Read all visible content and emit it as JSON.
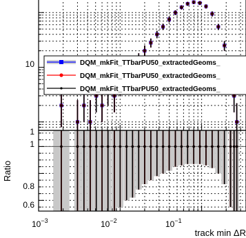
{
  "chart_data": [
    {
      "type": "scatter",
      "panel": "main",
      "xscale": "log",
      "yscale": "log",
      "xlim": [
        0.001,
        0.35
      ],
      "ylim": [
        0.7,
        180
      ],
      "grid": true,
      "ytick_labels": [
        "1",
        "10"
      ],
      "legend": {
        "placement": "top-right"
      },
      "series": [
        {
          "name": "DQM_mkFit_TTbarPU50_extractedGeoms_",
          "color": "#0000ff",
          "marker": "square",
          "points": [
            {
              "x": 0.0019,
              "y": 2,
              "err_lo": 1.2,
              "err_hi": 2.5
            },
            {
              "x": 0.003,
              "y": 1,
              "err_lo": 0.5,
              "err_hi": 1.5
            },
            {
              "x": 0.0036,
              "y": 2,
              "err_lo": 1.0,
              "err_hi": 2.0
            },
            {
              "x": 0.0043,
              "y": 1,
              "err_lo": 0.5,
              "err_hi": 1.5
            },
            {
              "x": 0.0051,
              "y": 3,
              "err_lo": 1.5,
              "err_hi": 2.5
            },
            {
              "x": 0.006,
              "y": 2,
              "err_lo": 1.0,
              "err_hi": 2.0
            },
            {
              "x": 0.0071,
              "y": 4,
              "err_lo": 2.0,
              "err_hi": 2.5
            },
            {
              "x": 0.0085,
              "y": 3,
              "err_lo": 1.5,
              "err_hi": 2.0
            },
            {
              "x": 0.01,
              "y": 5,
              "err_lo": 2.0,
              "err_hi": 2.5
            },
            {
              "x": 0.012,
              "y": 7,
              "err_lo": 2.5,
              "err_hi": 3.0
            },
            {
              "x": 0.0142,
              "y": 10,
              "err_lo": 3.0,
              "err_hi": 3.5
            },
            {
              "x": 0.0169,
              "y": 14,
              "err_lo": 3.5,
              "err_hi": 4.0
            },
            {
              "x": 0.02,
              "y": 20,
              "err_lo": 4.5,
              "err_hi": 5.0
            },
            {
              "x": 0.0238,
              "y": 28,
              "err_lo": 5.0,
              "err_hi": 5.5
            },
            {
              "x": 0.0283,
              "y": 40,
              "err_lo": 6.0,
              "err_hi": 6.5
            },
            {
              "x": 0.0336,
              "y": 55,
              "err_lo": 7.0,
              "err_hi": 7.5
            },
            {
              "x": 0.04,
              "y": 75,
              "err_lo": 8.5,
              "err_hi": 9.0
            },
            {
              "x": 0.0476,
              "y": 100,
              "err_lo": 10,
              "err_hi": 10
            },
            {
              "x": 0.0566,
              "y": 125,
              "err_lo": 11,
              "err_hi": 11
            },
            {
              "x": 0.0673,
              "y": 145,
              "err_lo": 12,
              "err_hi": 12
            },
            {
              "x": 0.08,
              "y": 155,
              "err_lo": 12,
              "err_hi": 12
            },
            {
              "x": 0.0951,
              "y": 150,
              "err_lo": 12,
              "err_hi": 12
            },
            {
              "x": 0.1131,
              "y": 130,
              "err_lo": 11,
              "err_hi": 11
            },
            {
              "x": 0.1345,
              "y": 95,
              "err_lo": 10,
              "err_hi": 10
            },
            {
              "x": 0.16,
              "y": 55,
              "err_lo": 7,
              "err_hi": 7
            },
            {
              "x": 0.1903,
              "y": 25,
              "err_lo": 5,
              "err_hi": 5
            },
            {
              "x": 0.2263,
              "y": 8,
              "err_lo": 3,
              "err_hi": 3
            },
            {
              "x": 0.25,
              "y": 3,
              "err_lo": 1.5,
              "err_hi": 2
            },
            {
              "x": 0.27,
              "y": 1,
              "err_lo": 0.5,
              "err_hi": 1.2
            }
          ]
        },
        {
          "name": "DQM_mkFit_TTbarPU50_extractedGeoms_",
          "color": "#ff0000",
          "marker": "circle",
          "points": [
            {
              "x": 0.0019,
              "y": 2,
              "err_lo": 1.2,
              "err_hi": 2.5
            },
            {
              "x": 0.003,
              "y": 1,
              "err_lo": 0.5,
              "err_hi": 1.5
            },
            {
              "x": 0.0036,
              "y": 2,
              "err_lo": 1.0,
              "err_hi": 2.0
            },
            {
              "x": 0.0043,
              "y": 1,
              "err_lo": 0.5,
              "err_hi": 1.5
            },
            {
              "x": 0.0051,
              "y": 3,
              "err_lo": 1.5,
              "err_hi": 2.5
            },
            {
              "x": 0.006,
              "y": 2,
              "err_lo": 1.0,
              "err_hi": 2.0
            },
            {
              "x": 0.0071,
              "y": 4,
              "err_lo": 2.0,
              "err_hi": 2.5
            },
            {
              "x": 0.0085,
              "y": 3,
              "err_lo": 1.5,
              "err_hi": 2.0
            },
            {
              "x": 0.01,
              "y": 5,
              "err_lo": 2.0,
              "err_hi": 2.5
            },
            {
              "x": 0.012,
              "y": 7,
              "err_lo": 2.5,
              "err_hi": 3.0
            },
            {
              "x": 0.0142,
              "y": 10,
              "err_lo": 3.0,
              "err_hi": 3.5
            },
            {
              "x": 0.0169,
              "y": 14,
              "err_lo": 3.5,
              "err_hi": 4.0
            },
            {
              "x": 0.02,
              "y": 20,
              "err_lo": 4.5,
              "err_hi": 5.0
            },
            {
              "x": 0.0238,
              "y": 28,
              "err_lo": 5.0,
              "err_hi": 5.5
            },
            {
              "x": 0.0283,
              "y": 40,
              "err_lo": 6.0,
              "err_hi": 6.5
            },
            {
              "x": 0.0336,
              "y": 55,
              "err_lo": 7.0,
              "err_hi": 7.5
            },
            {
              "x": 0.04,
              "y": 75,
              "err_lo": 8.5,
              "err_hi": 9.0
            },
            {
              "x": 0.0476,
              "y": 100,
              "err_lo": 10,
              "err_hi": 10
            },
            {
              "x": 0.0566,
              "y": 125,
              "err_lo": 11,
              "err_hi": 11
            },
            {
              "x": 0.0673,
              "y": 145,
              "err_lo": 12,
              "err_hi": 12
            },
            {
              "x": 0.08,
              "y": 155,
              "err_lo": 12,
              "err_hi": 12
            },
            {
              "x": 0.0951,
              "y": 150,
              "err_lo": 12,
              "err_hi": 12
            },
            {
              "x": 0.1131,
              "y": 130,
              "err_lo": 11,
              "err_hi": 11
            },
            {
              "x": 0.1345,
              "y": 95,
              "err_lo": 10,
              "err_hi": 10
            },
            {
              "x": 0.16,
              "y": 55,
              "err_lo": 7,
              "err_hi": 7
            },
            {
              "x": 0.1903,
              "y": 25,
              "err_lo": 5,
              "err_hi": 5
            },
            {
              "x": 0.2263,
              "y": 8,
              "err_lo": 3,
              "err_hi": 3
            },
            {
              "x": 0.25,
              "y": 3,
              "err_lo": 1.5,
              "err_hi": 2
            },
            {
              "x": 0.27,
              "y": 1,
              "err_lo": 0.5,
              "err_hi": 1.2
            }
          ]
        },
        {
          "name": "DQM_mkFit_TTbarPU50_extractedGeoms_",
          "color": "#000000",
          "marker": "dot",
          "points": [
            {
              "x": 0.0019,
              "y": 2,
              "err_lo": 1.2,
              "err_hi": 2.5
            },
            {
              "x": 0.003,
              "y": 1,
              "err_lo": 0.5,
              "err_hi": 1.5
            },
            {
              "x": 0.0036,
              "y": 2,
              "err_lo": 1.0,
              "err_hi": 2.0
            },
            {
              "x": 0.0043,
              "y": 1,
              "err_lo": 0.5,
              "err_hi": 1.5
            },
            {
              "x": 0.0051,
              "y": 3,
              "err_lo": 1.5,
              "err_hi": 2.5
            },
            {
              "x": 0.006,
              "y": 2,
              "err_lo": 1.0,
              "err_hi": 2.0
            },
            {
              "x": 0.0071,
              "y": 4,
              "err_lo": 2.0,
              "err_hi": 2.5
            },
            {
              "x": 0.0085,
              "y": 3,
              "err_lo": 1.5,
              "err_hi": 2.0
            },
            {
              "x": 0.01,
              "y": 5,
              "err_lo": 2.0,
              "err_hi": 2.5
            },
            {
              "x": 0.012,
              "y": 7,
              "err_lo": 2.5,
              "err_hi": 3.0
            },
            {
              "x": 0.0142,
              "y": 10,
              "err_lo": 3.0,
              "err_hi": 3.5
            },
            {
              "x": 0.0169,
              "y": 14,
              "err_lo": 3.5,
              "err_hi": 4.0
            },
            {
              "x": 0.02,
              "y": 20,
              "err_lo": 4.5,
              "err_hi": 5.0
            },
            {
              "x": 0.0238,
              "y": 28,
              "err_lo": 5.0,
              "err_hi": 5.5
            },
            {
              "x": 0.0283,
              "y": 40,
              "err_lo": 6.0,
              "err_hi": 6.5
            },
            {
              "x": 0.0336,
              "y": 55,
              "err_lo": 7.0,
              "err_hi": 7.5
            },
            {
              "x": 0.04,
              "y": 75,
              "err_lo": 8.5,
              "err_hi": 9.0
            },
            {
              "x": 0.0476,
              "y": 100,
              "err_lo": 10,
              "err_hi": 10
            },
            {
              "x": 0.0566,
              "y": 125,
              "err_lo": 11,
              "err_hi": 11
            },
            {
              "x": 0.0673,
              "y": 145,
              "err_lo": 12,
              "err_hi": 12
            },
            {
              "x": 0.08,
              "y": 155,
              "err_lo": 12,
              "err_hi": 12
            },
            {
              "x": 0.0951,
              "y": 150,
              "err_lo": 12,
              "err_hi": 12
            },
            {
              "x": 0.1131,
              "y": 130,
              "err_lo": 11,
              "err_hi": 11
            },
            {
              "x": 0.1345,
              "y": 95,
              "err_lo": 10,
              "err_hi": 10
            },
            {
              "x": 0.16,
              "y": 55,
              "err_lo": 7,
              "err_hi": 7
            },
            {
              "x": 0.1903,
              "y": 25,
              "err_lo": 5,
              "err_hi": 5
            },
            {
              "x": 0.2263,
              "y": 8,
              "err_lo": 3,
              "err_hi": 3
            },
            {
              "x": 0.25,
              "y": 3,
              "err_lo": 1.5,
              "err_hi": 2
            },
            {
              "x": 0.27,
              "y": 1,
              "err_lo": 0.5,
              "err_hi": 1.2
            }
          ]
        }
      ]
    },
    {
      "type": "scatter",
      "panel": "ratio",
      "xscale": "log",
      "xlim": [
        0.001,
        0.35
      ],
      "ylim": [
        0.52,
        1.12
      ],
      "grid": true,
      "ylabel": "Ratio",
      "xlabel": "track min ΔR",
      "xtick_labels": [
        {
          "value": 0.001,
          "base": "10",
          "exp": "−3"
        },
        {
          "value": 0.01,
          "base": "10",
          "exp": "−2"
        },
        {
          "value": 0.1,
          "base": "10",
          "exp": "−1"
        }
      ],
      "ytick_labels": [
        "1",
        "0.8",
        "0.6"
      ],
      "reference_line": 1,
      "series": [
        {
          "name": "DQM_mkFit_TTbarPU50_extractedGeoms_",
          "color": "#ff0000",
          "points": [
            {
              "x": 0.0019,
              "y": 1,
              "err": 0.55
            },
            {
              "x": 0.003,
              "y": 1,
              "err": 0.55
            },
            {
              "x": 0.0036,
              "y": 1,
              "err": 0.55
            },
            {
              "x": 0.0043,
              "y": 1,
              "err": 0.55
            },
            {
              "x": 0.0051,
              "y": 1,
              "err": 0.55
            },
            {
              "x": 0.006,
              "y": 1,
              "err": 0.55
            },
            {
              "x": 0.0071,
              "y": 1,
              "err": 0.55
            },
            {
              "x": 0.0085,
              "y": 1,
              "err": 0.5
            },
            {
              "x": 0.01,
              "y": 1,
              "err": 0.45
            },
            {
              "x": 0.012,
              "y": 1,
              "err": 0.4
            },
            {
              "x": 0.0142,
              "y": 1,
              "err": 0.38
            },
            {
              "x": 0.0169,
              "y": 1,
              "err": 0.32
            },
            {
              "x": 0.02,
              "y": 1,
              "err": 0.28
            },
            {
              "x": 0.0238,
              "y": 1,
              "err": 0.25
            },
            {
              "x": 0.0283,
              "y": 1,
              "err": 0.22
            },
            {
              "x": 0.0336,
              "y": 1,
              "err": 0.2
            },
            {
              "x": 0.04,
              "y": 1,
              "err": 0.18
            },
            {
              "x": 0.0476,
              "y": 1,
              "err": 0.15
            },
            {
              "x": 0.0566,
              "y": 1,
              "err": 0.14
            },
            {
              "x": 0.0673,
              "y": 1,
              "err": 0.13
            },
            {
              "x": 0.08,
              "y": 1,
              "err": 0.13
            },
            {
              "x": 0.0951,
              "y": 1,
              "err": 0.13
            },
            {
              "x": 0.1131,
              "y": 1,
              "err": 0.14
            },
            {
              "x": 0.1345,
              "y": 1,
              "err": 0.16
            },
            {
              "x": 0.16,
              "y": 1,
              "err": 0.2
            },
            {
              "x": 0.1903,
              "y": 1,
              "err": 0.28
            },
            {
              "x": 0.2263,
              "y": 1,
              "err": 0.45
            },
            {
              "x": 0.25,
              "y": 1,
              "err": 0.55
            },
            {
              "x": 0.27,
              "y": 1,
              "err": 0.55
            }
          ]
        },
        {
          "name": "DQM_mkFit_TTbarPU50_extractedGeoms_",
          "color": "#000000",
          "points": [
            {
              "x": 0.0019,
              "y": 1,
              "err": 0.55
            },
            {
              "x": 0.003,
              "y": 1,
              "err": 0.55
            },
            {
              "x": 0.0036,
              "y": 1,
              "err": 0.55
            },
            {
              "x": 0.0043,
              "y": 1,
              "err": 0.55
            },
            {
              "x": 0.0051,
              "y": 1,
              "err": 0.55
            },
            {
              "x": 0.006,
              "y": 1,
              "err": 0.55
            },
            {
              "x": 0.0071,
              "y": 1,
              "err": 0.55
            },
            {
              "x": 0.0085,
              "y": 1,
              "err": 0.5
            },
            {
              "x": 0.01,
              "y": 1,
              "err": 0.45
            },
            {
              "x": 0.012,
              "y": 1,
              "err": 0.4
            },
            {
              "x": 0.0142,
              "y": 1,
              "err": 0.38
            },
            {
              "x": 0.0169,
              "y": 1,
              "err": 0.32
            },
            {
              "x": 0.02,
              "y": 1,
              "err": 0.28
            },
            {
              "x": 0.0238,
              "y": 1,
              "err": 0.25
            },
            {
              "x": 0.0283,
              "y": 1,
              "err": 0.22
            },
            {
              "x": 0.0336,
              "y": 1,
              "err": 0.2
            },
            {
              "x": 0.04,
              "y": 1,
              "err": 0.18
            },
            {
              "x": 0.0476,
              "y": 1,
              "err": 0.15
            },
            {
              "x": 0.0566,
              "y": 1,
              "err": 0.14
            },
            {
              "x": 0.0673,
              "y": 1,
              "err": 0.13
            },
            {
              "x": 0.08,
              "y": 1,
              "err": 0.13
            },
            {
              "x": 0.0951,
              "y": 1,
              "err": 0.13
            },
            {
              "x": 0.1131,
              "y": 1,
              "err": 0.14
            },
            {
              "x": 0.1345,
              "y": 1,
              "err": 0.16
            },
            {
              "x": 0.16,
              "y": 1,
              "err": 0.2
            },
            {
              "x": 0.1903,
              "y": 1,
              "err": 0.28
            },
            {
              "x": 0.2263,
              "y": 1,
              "err": 0.45
            },
            {
              "x": 0.25,
              "y": 1,
              "err": 0.55
            },
            {
              "x": 0.27,
              "y": 1,
              "err": 0.55
            }
          ]
        }
      ]
    }
  ]
}
